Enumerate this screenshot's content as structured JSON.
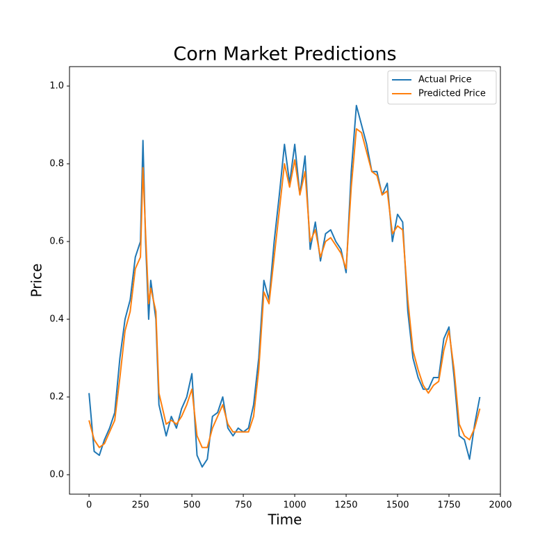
{
  "chart_data": {
    "type": "line",
    "title": "Corn Market Predictions",
    "x_label": "Time",
    "y_label": "Price",
    "x": [
      0,
      25,
      50,
      75,
      100,
      125,
      150,
      175,
      200,
      225,
      250,
      262,
      275,
      290,
      300,
      325,
      340,
      375,
      400,
      425,
      450,
      475,
      500,
      525,
      550,
      575,
      600,
      625,
      650,
      675,
      700,
      725,
      750,
      775,
      800,
      825,
      850,
      875,
      900,
      925,
      950,
      975,
      1000,
      1025,
      1050,
      1075,
      1100,
      1125,
      1150,
      1175,
      1200,
      1225,
      1250,
      1275,
      1300,
      1325,
      1350,
      1375,
      1400,
      1425,
      1450,
      1475,
      1500,
      1525,
      1550,
      1575,
      1600,
      1625,
      1650,
      1675,
      1700,
      1725,
      1750,
      1775,
      1800,
      1825,
      1850,
      1875,
      1900
    ],
    "series": [
      {
        "name": "Actual Price",
        "color": "#1f77b4",
        "values": [
          0.21,
          0.06,
          0.05,
          0.09,
          0.12,
          0.16,
          0.3,
          0.4,
          0.45,
          0.56,
          0.6,
          0.86,
          0.6,
          0.4,
          0.5,
          0.4,
          0.18,
          0.1,
          0.15,
          0.12,
          0.17,
          0.2,
          0.26,
          0.05,
          0.02,
          0.04,
          0.15,
          0.16,
          0.2,
          0.12,
          0.1,
          0.12,
          0.11,
          0.12,
          0.18,
          0.3,
          0.5,
          0.45,
          0.6,
          0.72,
          0.85,
          0.75,
          0.85,
          0.72,
          0.82,
          0.58,
          0.65,
          0.55,
          0.62,
          0.63,
          0.6,
          0.58,
          0.52,
          0.78,
          0.95,
          0.9,
          0.85,
          0.78,
          0.78,
          0.72,
          0.75,
          0.6,
          0.67,
          0.65,
          0.42,
          0.3,
          0.25,
          0.22,
          0.22,
          0.25,
          0.25,
          0.35,
          0.38,
          0.25,
          0.1,
          0.09,
          0.04,
          0.13,
          0.2
        ]
      },
      {
        "name": "Predicted Price",
        "color": "#ff7f0e",
        "values": [
          0.14,
          0.09,
          0.07,
          0.08,
          0.11,
          0.14,
          0.25,
          0.37,
          0.42,
          0.53,
          0.56,
          0.79,
          0.62,
          0.44,
          0.48,
          0.42,
          0.21,
          0.13,
          0.14,
          0.13,
          0.15,
          0.18,
          0.22,
          0.1,
          0.07,
          0.07,
          0.12,
          0.15,
          0.18,
          0.13,
          0.11,
          0.11,
          0.11,
          0.11,
          0.15,
          0.27,
          0.47,
          0.44,
          0.56,
          0.68,
          0.8,
          0.74,
          0.81,
          0.72,
          0.78,
          0.6,
          0.63,
          0.56,
          0.6,
          0.61,
          0.59,
          0.57,
          0.53,
          0.74,
          0.89,
          0.88,
          0.83,
          0.78,
          0.77,
          0.72,
          0.73,
          0.62,
          0.64,
          0.63,
          0.45,
          0.32,
          0.27,
          0.23,
          0.21,
          0.23,
          0.24,
          0.32,
          0.37,
          0.27,
          0.13,
          0.1,
          0.09,
          0.12,
          0.17
        ]
      }
    ],
    "xlim": [
      -95,
      2000
    ],
    "ylim": [
      -0.05,
      1.05
    ],
    "xticks": [
      0,
      250,
      500,
      750,
      1000,
      1250,
      1500,
      1750,
      2000
    ],
    "yticks": [
      {
        "value": 0,
        "label": "0.0"
      },
      0.2,
      0.4,
      0.6,
      0.8,
      {
        "value": 1,
        "label": "1.0"
      }
    ],
    "legend": "upper right"
  }
}
